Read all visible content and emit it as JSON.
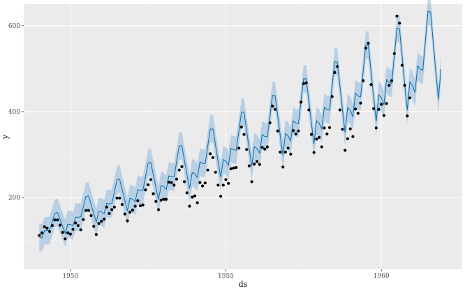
{
  "chart_data": {
    "type": "line",
    "title": "",
    "xlabel": "ds",
    "ylabel": "y",
    "x_range": [
      1948.5,
      1962.6
    ],
    "y_range": [
      33,
      650
    ],
    "x_ticks": [
      1950,
      1955,
      1960
    ],
    "y_ticks": [
      200,
      400,
      600
    ],
    "x_tick_labels": [
      "1950",
      "1955",
      "1960"
    ],
    "y_tick_labels": [
      "200",
      "400",
      "600"
    ],
    "grid": true,
    "legend": "none",
    "colors": {
      "panel": "#ebebeb",
      "grid_major": "#ffffff",
      "grid_minor": "#f2f2f2",
      "forecast_line": "#0072b2",
      "interval": "#9ec0de",
      "points": "#000000"
    },
    "observed": {
      "start": 1949.0,
      "step_months": 1,
      "y": [
        112,
        118,
        132,
        129,
        121,
        135,
        148,
        148,
        136,
        119,
        104,
        118,
        115,
        126,
        141,
        135,
        125,
        149,
        170,
        170,
        158,
        133,
        114,
        140,
        145,
        150,
        178,
        163,
        172,
        178,
        199,
        199,
        184,
        162,
        146,
        166,
        171,
        180,
        193,
        181,
        183,
        218,
        230,
        242,
        209,
        191,
        172,
        194,
        196,
        196,
        236,
        235,
        229,
        243,
        264,
        272,
        237,
        211,
        180,
        201,
        204,
        188,
        235,
        227,
        234,
        264,
        302,
        293,
        259,
        229,
        203,
        229,
        242,
        233,
        267,
        269,
        270,
        315,
        364,
        347,
        312,
        274,
        237,
        278,
        284,
        277,
        317,
        313,
        318,
        374,
        413,
        405,
        355,
        306,
        271,
        306,
        315,
        301,
        356,
        348,
        355,
        422,
        465,
        467,
        404,
        347,
        305,
        336,
        340,
        318,
        362,
        348,
        363,
        435,
        491,
        505,
        404,
        359,
        310,
        337,
        360,
        342,
        406,
        396,
        420,
        472,
        548,
        559,
        463,
        407,
        362,
        405,
        417,
        391,
        419,
        461,
        472,
        535,
        622,
        606,
        508,
        461,
        390,
        432
      ]
    },
    "forecast": {
      "start": 1949.0,
      "end": 1961.92,
      "trend_start": 115,
      "trend_end": 520,
      "seasonal_amplitude": [
        -0.06,
        -0.1,
        0.02,
        0.0,
        -0.01,
        0.12,
        0.25,
        0.24,
        0.1,
        -0.04,
        -0.17,
        -0.04
      ],
      "interval_halfwidth": 32
    }
  }
}
